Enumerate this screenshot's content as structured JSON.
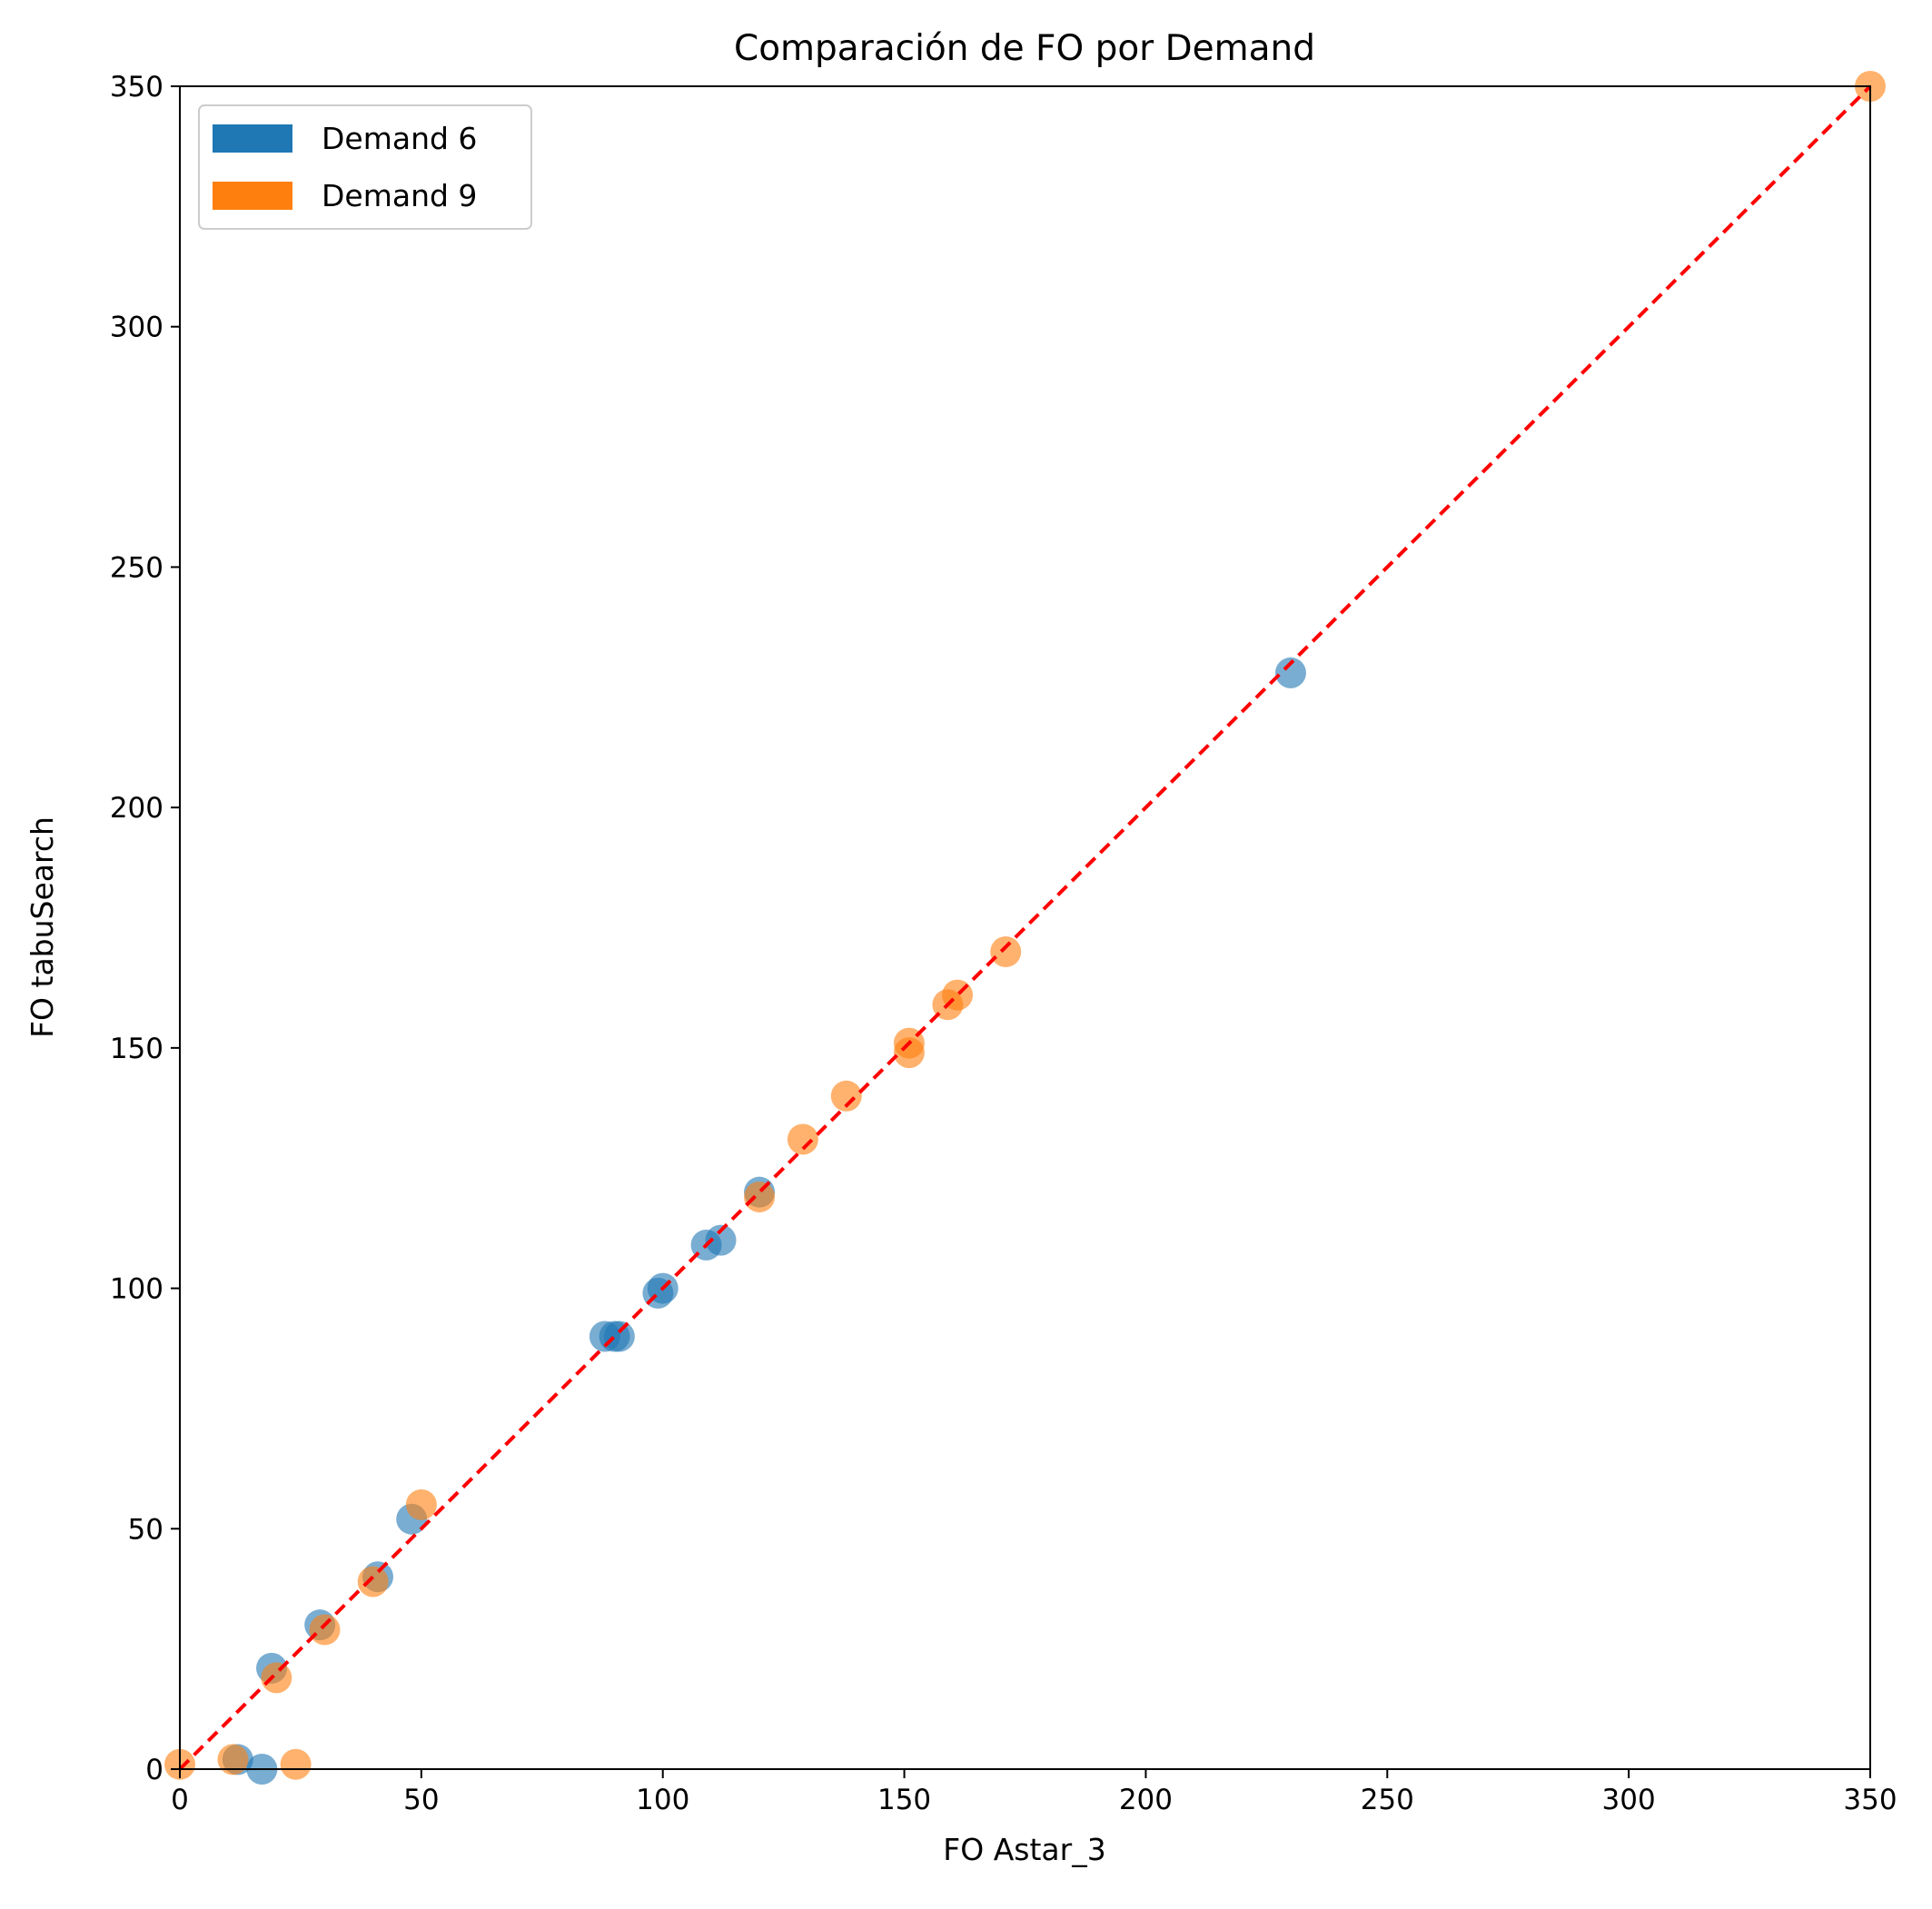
{
  "chart_data": {
    "type": "scatter",
    "title": "Comparación de FO por Demand",
    "xlabel": "FO Astar_3",
    "ylabel": "FO tabuSearch",
    "xlim": [
      0,
      350
    ],
    "ylim": [
      0,
      350
    ],
    "xticks": [
      "0",
      "50",
      "100",
      "150",
      "200",
      "250",
      "300",
      "350"
    ],
    "yticks": [
      "0",
      "50",
      "100",
      "150",
      "200",
      "250",
      "300",
      "350"
    ],
    "grid": false,
    "legend_position": "top-left",
    "reference_line": {
      "style": "dashed",
      "color": "#ff0000",
      "from": [
        0,
        0
      ],
      "to": [
        350,
        350
      ]
    },
    "series": [
      {
        "name": "Demand 6",
        "color": "#1f77b4",
        "points": [
          [
            12,
            2
          ],
          [
            17,
            0
          ],
          [
            19,
            21
          ],
          [
            29,
            30
          ],
          [
            41,
            40
          ],
          [
            48,
            52
          ],
          [
            88,
            90
          ],
          [
            90,
            90
          ],
          [
            91,
            90
          ],
          [
            99,
            99
          ],
          [
            100,
            100
          ],
          [
            109,
            109
          ],
          [
            112,
            110
          ],
          [
            120,
            120
          ],
          [
            230,
            228
          ]
        ]
      },
      {
        "name": "Demand 9",
        "color": "#ff7f0e",
        "points": [
          [
            0,
            1
          ],
          [
            11,
            2
          ],
          [
            24,
            1
          ],
          [
            20,
            19
          ],
          [
            30,
            29
          ],
          [
            40,
            39
          ],
          [
            50,
            55
          ],
          [
            120,
            119
          ],
          [
            129,
            131
          ],
          [
            138,
            140
          ],
          [
            151,
            149
          ],
          [
            151,
            151
          ],
          [
            159,
            159
          ],
          [
            161,
            161
          ],
          [
            171,
            170
          ],
          [
            350,
            350
          ]
        ]
      }
    ]
  }
}
